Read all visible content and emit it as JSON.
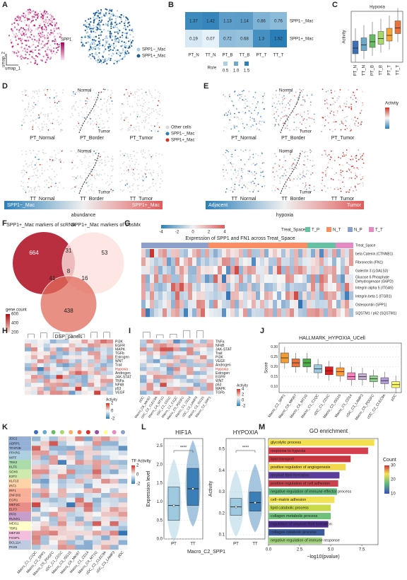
{
  "A": {
    "letter": "A",
    "color_label": "SPP1",
    "x_label": "umap_1",
    "y_label": "umap_2",
    "legend": [
      "SPP1−_Mac",
      "SPP1+_Mac"
    ],
    "legend_colors": [
      "#a9cce3",
      "#1f5f99"
    ]
  },
  "B": {
    "letter": "B",
    "columns": [
      "PT_N",
      "TT_N",
      "PT_B",
      "TT_B",
      "PT_T",
      "TT_T"
    ],
    "rows": [
      "SPP1−_Mac",
      "SPP1+_Mac"
    ],
    "values": [
      [
        1.37,
        1.42,
        1.13,
        1.14,
        0.86,
        0.76
      ],
      [
        0.19,
        0.07,
        0.72,
        0.68,
        1.3,
        1.52
      ]
    ],
    "x_label": "Ro/e",
    "legend_ticks": [
      0.5,
      {
        "value": 1,
        "label": "1.0"
      },
      1.5
    ]
  },
  "C": {
    "letter": "C",
    "title": "Hypoxia",
    "y_label": "Activity",
    "categories": [
      "PT_N",
      "TT_N",
      "PT_B",
      "TT_B",
      "PT_T",
      "TT_T"
    ]
  },
  "D": {
    "letter": "D",
    "region_top": "Normal",
    "region_bottom": "Tumor",
    "samples": [
      "PT_Normal",
      "PT_Border",
      "PT_Tumor",
      "TT_Normal",
      "TT_Border",
      "TT_Tumor"
    ],
    "legend": [
      "Other cells",
      "SPP1−_Mac",
      "SPP1+_Mac"
    ],
    "legend_colors": [
      "#d9d9d9",
      "#2c7fb8",
      "#d7301f"
    ],
    "bar_left": "SPP1−_Mac",
    "bar_right": "SPP1+_Mac",
    "bar_label": "abundance"
  },
  "E": {
    "letter": "E",
    "region_top": "Normal",
    "region_bottom": "Tumor",
    "samples": [
      "PT_Normal",
      "PT_Border",
      "PT_Tumor",
      "TT_Normal",
      "TT_Border",
      "TT_Tumor"
    ],
    "color_label": "Activity",
    "bar_left": "Adjacent",
    "bar_right": "Tumor",
    "bar_label": "hypoxia"
  },
  "F": {
    "letter": "F",
    "set_a": "SPP1+_Mac markers of scRNA",
    "set_b": "SPP1+_Mac markers of CosMx",
    "set_c": "DSP_panels",
    "counts": {
      "a": 664,
      "ab": 31,
      "b": 53,
      "abc": 8,
      "ac": 41,
      "bc": 16,
      "c": 438
    },
    "legend_title": "gene count",
    "legend_ticks": [
      600,
      400,
      200
    ]
  },
  "G": {
    "letter": "G",
    "title": "Expression of SPP1 and FN1 across Treat_Space",
    "colorbar_ticks": [
      -4,
      -2,
      0,
      2,
      4
    ],
    "legend_title": "Treat_Space",
    "groups": [
      "T_P",
      "N_T",
      "N_P",
      "T_T"
    ],
    "group_colors": [
      "#66c2a5",
      "#fc8d62",
      "#8da0cb",
      "#e78ac3"
    ],
    "rows": [
      "Treat_Space",
      "beta Catenin (CTNNB1)",
      "Fibronectin (FN1)",
      "Galectin 3 (LGALS3)",
      [
        "Glucose 6 Phosphate",
        "Dehydrogenase (G6PD)"
      ],
      "Integrin alpha 5 (ITGA5)",
      "Integrin beta 1 (ITGB1)",
      "Osteopontin (SPP1)",
      "SQSTM1 / p62 (SQSTM1)"
    ]
  },
  "H": {
    "letter": "H",
    "rows": [
      "PI3K",
      "EGFR",
      "MAPK",
      "TGFb",
      "Estrogen",
      "WNT",
      "Trail",
      "Hypoxia",
      "Androgen",
      "JAK-STAT",
      "TNFa",
      "NFkB",
      "p53",
      "VEGF"
    ],
    "legend_title": "Activity",
    "legend_ticks": [
      2,
      0,
      -2
    ]
  },
  "I": {
    "letter": "I",
    "rows": [
      "TNFa",
      "NFkB",
      "JAK-STAT",
      "Trail",
      "PI3K",
      "VEGF",
      "Androgen",
      "Hypoxia",
      "Estrogen",
      "EGFR",
      "WNT",
      "p53",
      "MAPK",
      "TGFb"
    ],
    "columns": [
      "pDC",
      "Macro_C6_MKI67",
      "cDC_C2_CLEC9A",
      "Macro_C4_MT1G",
      "cDC_C1_CD1C",
      "Macro_C1_C1QC",
      "Macro_C5_PDGFC",
      "Macro_C1_CD14",
      "cDC_C3_LAMP3",
      "Macro_C3_ISG15",
      "Macro_C2_SPP1"
    ],
    "legend_title": "Activity",
    "legend_ticks": [
      4,
      2,
      0,
      -2
    ]
  },
  "J": {
    "letter": "J",
    "title": "HALLMARK_HYPOXIA_UCell",
    "y_label": "Score",
    "ylim": [
      0.07,
      0.32
    ],
    "yticks": [
      {
        "value": 0.1,
        "label": "0.10"
      },
      0.15,
      {
        "value": 0.2,
        "label": "0.20"
      },
      0.25,
      {
        "value": 0.3,
        "label": "0.30"
      }
    ],
    "boxes": [
      {
        "name": "Macro_C2_SPP1",
        "color": "#f39c34",
        "q1": 0.22,
        "median": 0.245,
        "q3": 0.27
      },
      {
        "name": "Macro_C6_MKI67",
        "color": "#e8743b",
        "q1": 0.2,
        "median": 0.22,
        "q3": 0.24
      },
      {
        "name": "Macro_C4_MT1G",
        "color": "#4daf4a",
        "q1": 0.2,
        "median": 0.22,
        "q3": 0.24
      },
      {
        "name": "Macro_C1_C1QC",
        "color": "#9ecae1",
        "q1": 0.17,
        "median": 0.19,
        "q3": 0.21
      },
      {
        "name": "cDC_C1_CD1C",
        "color": "#e41a1c",
        "q1": 0.16,
        "median": 0.18,
        "q3": 0.2
      },
      {
        "name": "Macro_C3_ISG15",
        "color": "#ff9933",
        "q1": 0.155,
        "median": 0.175,
        "q3": 0.195
      },
      {
        "name": "Macro_C1_CD14",
        "color": "#f781bf",
        "q1": 0.135,
        "median": 0.15,
        "q3": 0.17
      },
      {
        "name": "cDC_C3_LAMP3",
        "color": "#c5b0d5",
        "q1": 0.135,
        "median": 0.15,
        "q3": 0.165
      },
      {
        "name": "Macro_C5_PDGFC",
        "color": "#8fd18f",
        "q1": 0.125,
        "median": 0.14,
        "q3": 0.155
      },
      {
        "name": "cDC_C2_CLEC9A",
        "color": "#b39ddb",
        "q1": 0.115,
        "median": 0.13,
        "q3": 0.145
      },
      {
        "name": "pDC",
        "color": "#ffff66",
        "q1": 0.095,
        "median": 0.11,
        "q3": 0.125
      }
    ]
  },
  "K": {
    "letter": "K",
    "genes": [
      "JDC2",
      "ADRP1",
      "TFAP2B",
      "PPARG",
      "MITF",
      "TEK2",
      "KLF6",
      "SOX6",
      "E2F2",
      "KLF13",
      "IRF3",
      "IRF1",
      "ZNF202",
      "EGR1",
      "MEF2C",
      "ELF3",
      "IRF8",
      "RUNX1",
      "MEIS1",
      "TBR1",
      "MEF2D",
      "FOXP1",
      "BCL11A",
      "PAX5"
    ],
    "columns": [
      "Macro_C1_C1QC",
      "Macro_C2_SPP1",
      "Macro_C5_PDGFC",
      "cDC_C1_CD1C",
      "Macro_C3_ISG15",
      "Macro_C6_MKI67",
      "Macro_C1_CD14",
      "Macro_C4_MT1G",
      "cDC_C2_CLEC9A",
      "cDC_C3_LAMP3",
      "pDC"
    ],
    "legend_title": "TF Activity",
    "legend_ticks": [
      2,
      0,
      -2
    ]
  },
  "L": {
    "letter": "L",
    "x_title": "Macro_C2_SPP1",
    "groups": [
      "PT",
      "TT"
    ],
    "group_colors": [
      "#9ecae1",
      "#3a7fb8"
    ],
    "significance": "****",
    "plots": [
      {
        "title": "HIF1A",
        "y_label": "Expression level",
        "ylim": [
          0,
          2.7
        ],
        "yticks": [
          {
            "value": 0,
            "label": "0.0"
          },
          0.5,
          {
            "value": 1,
            "label": "1.0"
          },
          1.5,
          {
            "value": 2,
            "label": "2.0"
          },
          2.5
        ],
        "q1": [
          0.5,
          0.9
        ],
        "median": [
          0.9,
          1.35
        ],
        "q3": [
          1.4,
          1.9
        ]
      },
      {
        "title": "HYPOXIA",
        "y_label": "Activity",
        "ylim": [
          0.08,
          0.55
        ],
        "yticks": [
          0.1,
          0.2,
          0.3,
          0.4,
          0.5
        ],
        "q1": [
          0.19,
          0.21
        ],
        "median": [
          0.23,
          0.25
        ],
        "q3": [
          0.27,
          0.3
        ]
      }
    ]
  },
  "M": {
    "letter": "M",
    "title": "GO enrichment",
    "x_label": "−log10(pvalue)",
    "xlim": [
      0,
      8.8
    ],
    "xticks": [
      {
        "value": 0,
        "label": "0.0"
      },
      2.5,
      {
        "value": 5,
        "label": "5.0"
      },
      7.5
    ],
    "legend_title": "Count",
    "legend_ticks": [
      30,
      20,
      10
    ],
    "categories": [
      "glycolytic process",
      "response to hypoxia",
      "lipid transport",
      "positive regulation of angiogenesis",
      "amyloid fibril formation",
      "positive regulation of cell adhesion",
      "negative regulation of immune effector process",
      "cell−matrix adhesion",
      "lipid catabolic process",
      "collagen metabolic process",
      "regulation of amyloid fibril formation",
      "collagen catabolic process",
      "negative regulation of immune response"
    ],
    "values": [
      8.5,
      8.0,
      6.6,
      6.2,
      5.7,
      5.6,
      5.5,
      5.3,
      5.0,
      5.0,
      4.8,
      4.5,
      4.3
    ],
    "colors": [
      "#f3e04f",
      "#d6404e",
      "#c8373f",
      "#f2d84a",
      "#5a3d9a",
      "#c9434c",
      "#5fb87a",
      "#f2e356",
      "#c8d94a",
      "#6fc07a",
      "#4b2d8a",
      "#3a5a9a",
      "#9fd37a"
    ]
  }
}
